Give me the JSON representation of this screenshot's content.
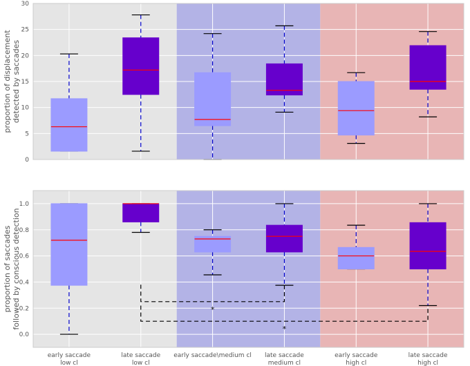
{
  "chart_data": [
    {
      "type": "box",
      "ylabel": [
        "proportion of displacement",
        "detected by saccades"
      ],
      "ylim": [
        0,
        30
      ],
      "yticks": [
        0,
        5,
        10,
        15,
        20,
        25,
        30
      ],
      "categories": [
        "early saccade low cl",
        "late saccade low cl",
        "early saccade\\medium cl",
        "late saccade medium cl",
        "early saccade high cl",
        "late saccade high cl"
      ],
      "background_groups": [
        {
          "label": "low cl",
          "color": "#e5e5e5"
        },
        {
          "label": "medium cl",
          "color": "#b3b3e6"
        },
        {
          "label": "high cl",
          "color": "#e8b5b5"
        }
      ],
      "boxes": [
        {
          "whislo": 1.6,
          "q1": 1.6,
          "med": 6.3,
          "q3": 11.7,
          "whishi": 20.3,
          "color": "#9b9bff"
        },
        {
          "whislo": 1.6,
          "q1": 12.5,
          "med": 17.2,
          "q3": 23.4,
          "whishi": 27.8,
          "color": "#6600cc"
        },
        {
          "whislo": 0.0,
          "q1": 6.5,
          "med": 7.7,
          "q3": 16.7,
          "whishi": 24.2,
          "color": "#9b9bff"
        },
        {
          "whislo": 9.1,
          "q1": 12.4,
          "med": 13.3,
          "q3": 18.4,
          "whishi": 25.7,
          "color": "#6600cc"
        },
        {
          "whislo": 3.1,
          "q1": 4.7,
          "med": 9.4,
          "q3": 15.0,
          "whishi": 16.7,
          "color": "#9b9bff"
        },
        {
          "whislo": 8.2,
          "q1": 13.5,
          "med": 15.0,
          "q3": 21.9,
          "whishi": 24.6,
          "color": "#6600cc"
        }
      ],
      "significance": []
    },
    {
      "type": "box",
      "ylabel": [
        "proportion of saccades",
        "followed by conscious detection"
      ],
      "ylim": [
        -0.1,
        1.1
      ],
      "yticks": [
        0.0,
        0.2,
        0.4,
        0.6,
        0.8,
        1.0
      ],
      "ytick_labels": [
        "0.0",
        "0.2",
        "0.4",
        "0.6",
        "0.8",
        "1.0"
      ],
      "categories": [
        "early saccade low cl",
        "late saccade low cl",
        "early saccade\\medium cl",
        "late saccade medium cl",
        "early saccade high cl",
        "late saccade high cl"
      ],
      "background_groups": [
        {
          "label": "low cl",
          "color": "#e5e5e5"
        },
        {
          "label": "medium cl",
          "color": "#b3b3e6"
        },
        {
          "label": "high cl",
          "color": "#e8b5b5"
        }
      ],
      "boxes": [
        {
          "whislo": 0.0,
          "q1": 0.375,
          "med": 0.72,
          "q3": 1.0,
          "whishi": 1.0,
          "color": "#9b9bff"
        },
        {
          "whislo": 0.78,
          "q1": 0.86,
          "med": 1.0,
          "q3": 1.0,
          "whishi": 1.0,
          "color": "#6600cc"
        },
        {
          "whislo": 0.455,
          "q1": 0.63,
          "med": 0.73,
          "q3": 0.75,
          "whishi": 0.8,
          "color": "#9b9bff"
        },
        {
          "whislo": 0.375,
          "q1": 0.63,
          "med": 0.75,
          "q3": 0.835,
          "whishi": 1.0,
          "color": "#6600cc"
        },
        {
          "whislo": 0.5,
          "q1": 0.5,
          "med": 0.6,
          "q3": 0.665,
          "whishi": 0.835,
          "color": "#9b9bff"
        },
        {
          "whislo": 0.22,
          "q1": 0.5,
          "med": 0.635,
          "q3": 0.855,
          "whishi": 1.0,
          "color": "#6600cc"
        }
      ],
      "significance": [
        {
          "from": 1,
          "to": 3,
          "y": 0.25,
          "drop_to": 0.38,
          "label": "*"
        },
        {
          "from": 1,
          "to": 5,
          "y": 0.1,
          "drop_to": 0.22,
          "label": "*"
        }
      ]
    }
  ],
  "xaxis_labels": [
    [
      "early saccade",
      "low cl"
    ],
    [
      "late saccade",
      "low cl"
    ],
    [
      "early saccade\\medium cl"
    ],
    [
      "late saccade",
      "medium cl"
    ],
    [
      "early saccade",
      "high cl"
    ],
    [
      "late saccade",
      "high cl"
    ]
  ],
  "colors": {
    "median": "#ff0000",
    "whisker": "#0000cc",
    "cap": "#000000",
    "grid": "#ffffff",
    "axis_frame": "#cccccc",
    "significance": "#000000"
  }
}
